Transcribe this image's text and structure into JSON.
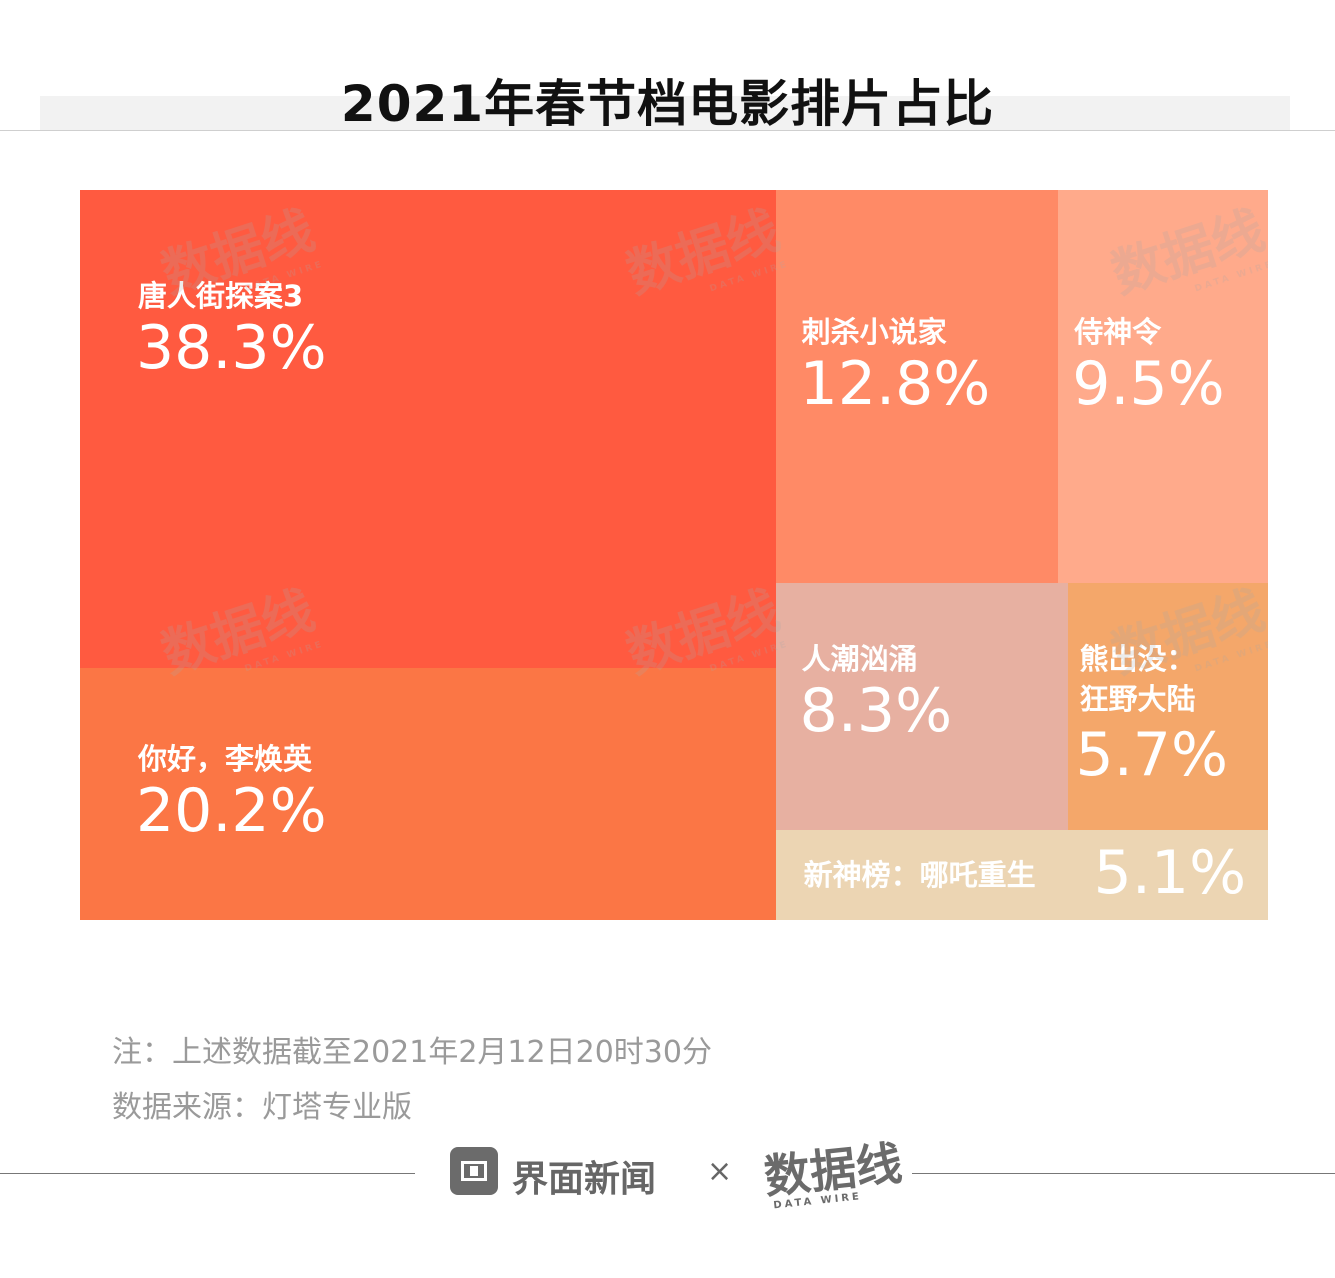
{
  "title": "2021年春节档电影排片占比",
  "chart_data": {
    "type": "treemap",
    "title": "2021年春节档电影排片占比",
    "unit": "%",
    "items": [
      {
        "name": "唐人街探案3",
        "value": 38.3,
        "value_label": "38.3%",
        "color": "#ff5a40"
      },
      {
        "name": "你好，李焕英",
        "value": 20.2,
        "value_label": "20.2%",
        "color": "#fb7645"
      },
      {
        "name": "刺杀小说家",
        "value": 12.8,
        "value_label": "12.8%",
        "color": "#ff8a66"
      },
      {
        "name": "侍神令",
        "value": 9.5,
        "value_label": "9.5%",
        "color": "#ffaa8b"
      },
      {
        "name": "人潮汹涌",
        "value": 8.3,
        "value_label": "8.3%",
        "color": "#e7b0a1"
      },
      {
        "name": "熊出没：\n狂野大陆",
        "value": 5.7,
        "value_label": "5.7%",
        "color": "#f4a76a"
      },
      {
        "name": "新神榜：哪吒重生",
        "value": 5.1,
        "value_label": "5.1%",
        "color": "#ecd5b3"
      }
    ]
  },
  "notes": {
    "line1": "注：上述数据截至2021年2月12日20时30分",
    "line2": "数据来源：灯塔专业版"
  },
  "footer": {
    "brand": "界面新闻",
    "separator": "×",
    "logo_text": "数据线",
    "logo_sub": "DATA WIRE"
  }
}
